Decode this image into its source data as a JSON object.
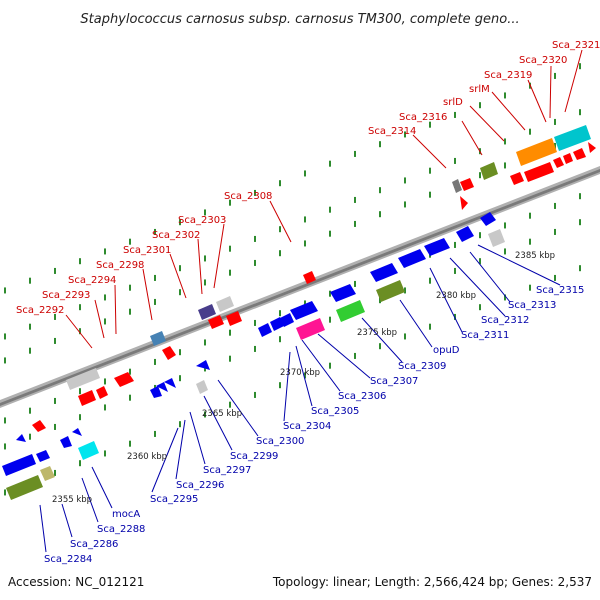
{
  "title": "Staphylococcus carnosus subsp. carnosus TM300, complete geno...",
  "footer": {
    "accession": "Accession: NC_012121",
    "summary": "Topology: linear; Length: 2,566,424 bp; Genes: 2,537"
  },
  "colors": {
    "forward": "#ff0000",
    "reverse": "#0000ee",
    "backbone": "#888888",
    "leader_top": "#cc0000",
    "leader_bottom": "#0000aa"
  },
  "ticks": [
    "2355 kbp",
    "2360 kbp",
    "2365 kbp",
    "2370 kbp",
    "2375 kbp",
    "2380 kbp",
    "2385 kbp"
  ],
  "top_labels": [
    "Sca_2292",
    "Sca_2293",
    "Sca_2294",
    "Sca_2298",
    "Sca_2301",
    "Sca_2302",
    "Sca_2303",
    "Sca_2308",
    "Sca_2314",
    "Sca_2316",
    "srlD",
    "srlM",
    "Sca_2319",
    "Sca_2320",
    "Sca_2321"
  ],
  "bottom_labels": [
    "Sca_2284",
    "Sca_2286",
    "Sca_2288",
    "mocA",
    "Sca_2295",
    "Sca_2296",
    "Sca_2297",
    "Sca_2299",
    "Sca_2300",
    "Sca_2304",
    "Sca_2305",
    "Sca_2306",
    "Sca_2307",
    "Sca_2309",
    "opuD",
    "Sca_2311",
    "Sca_2312",
    "Sca_2313",
    "Sca_2315"
  ]
}
